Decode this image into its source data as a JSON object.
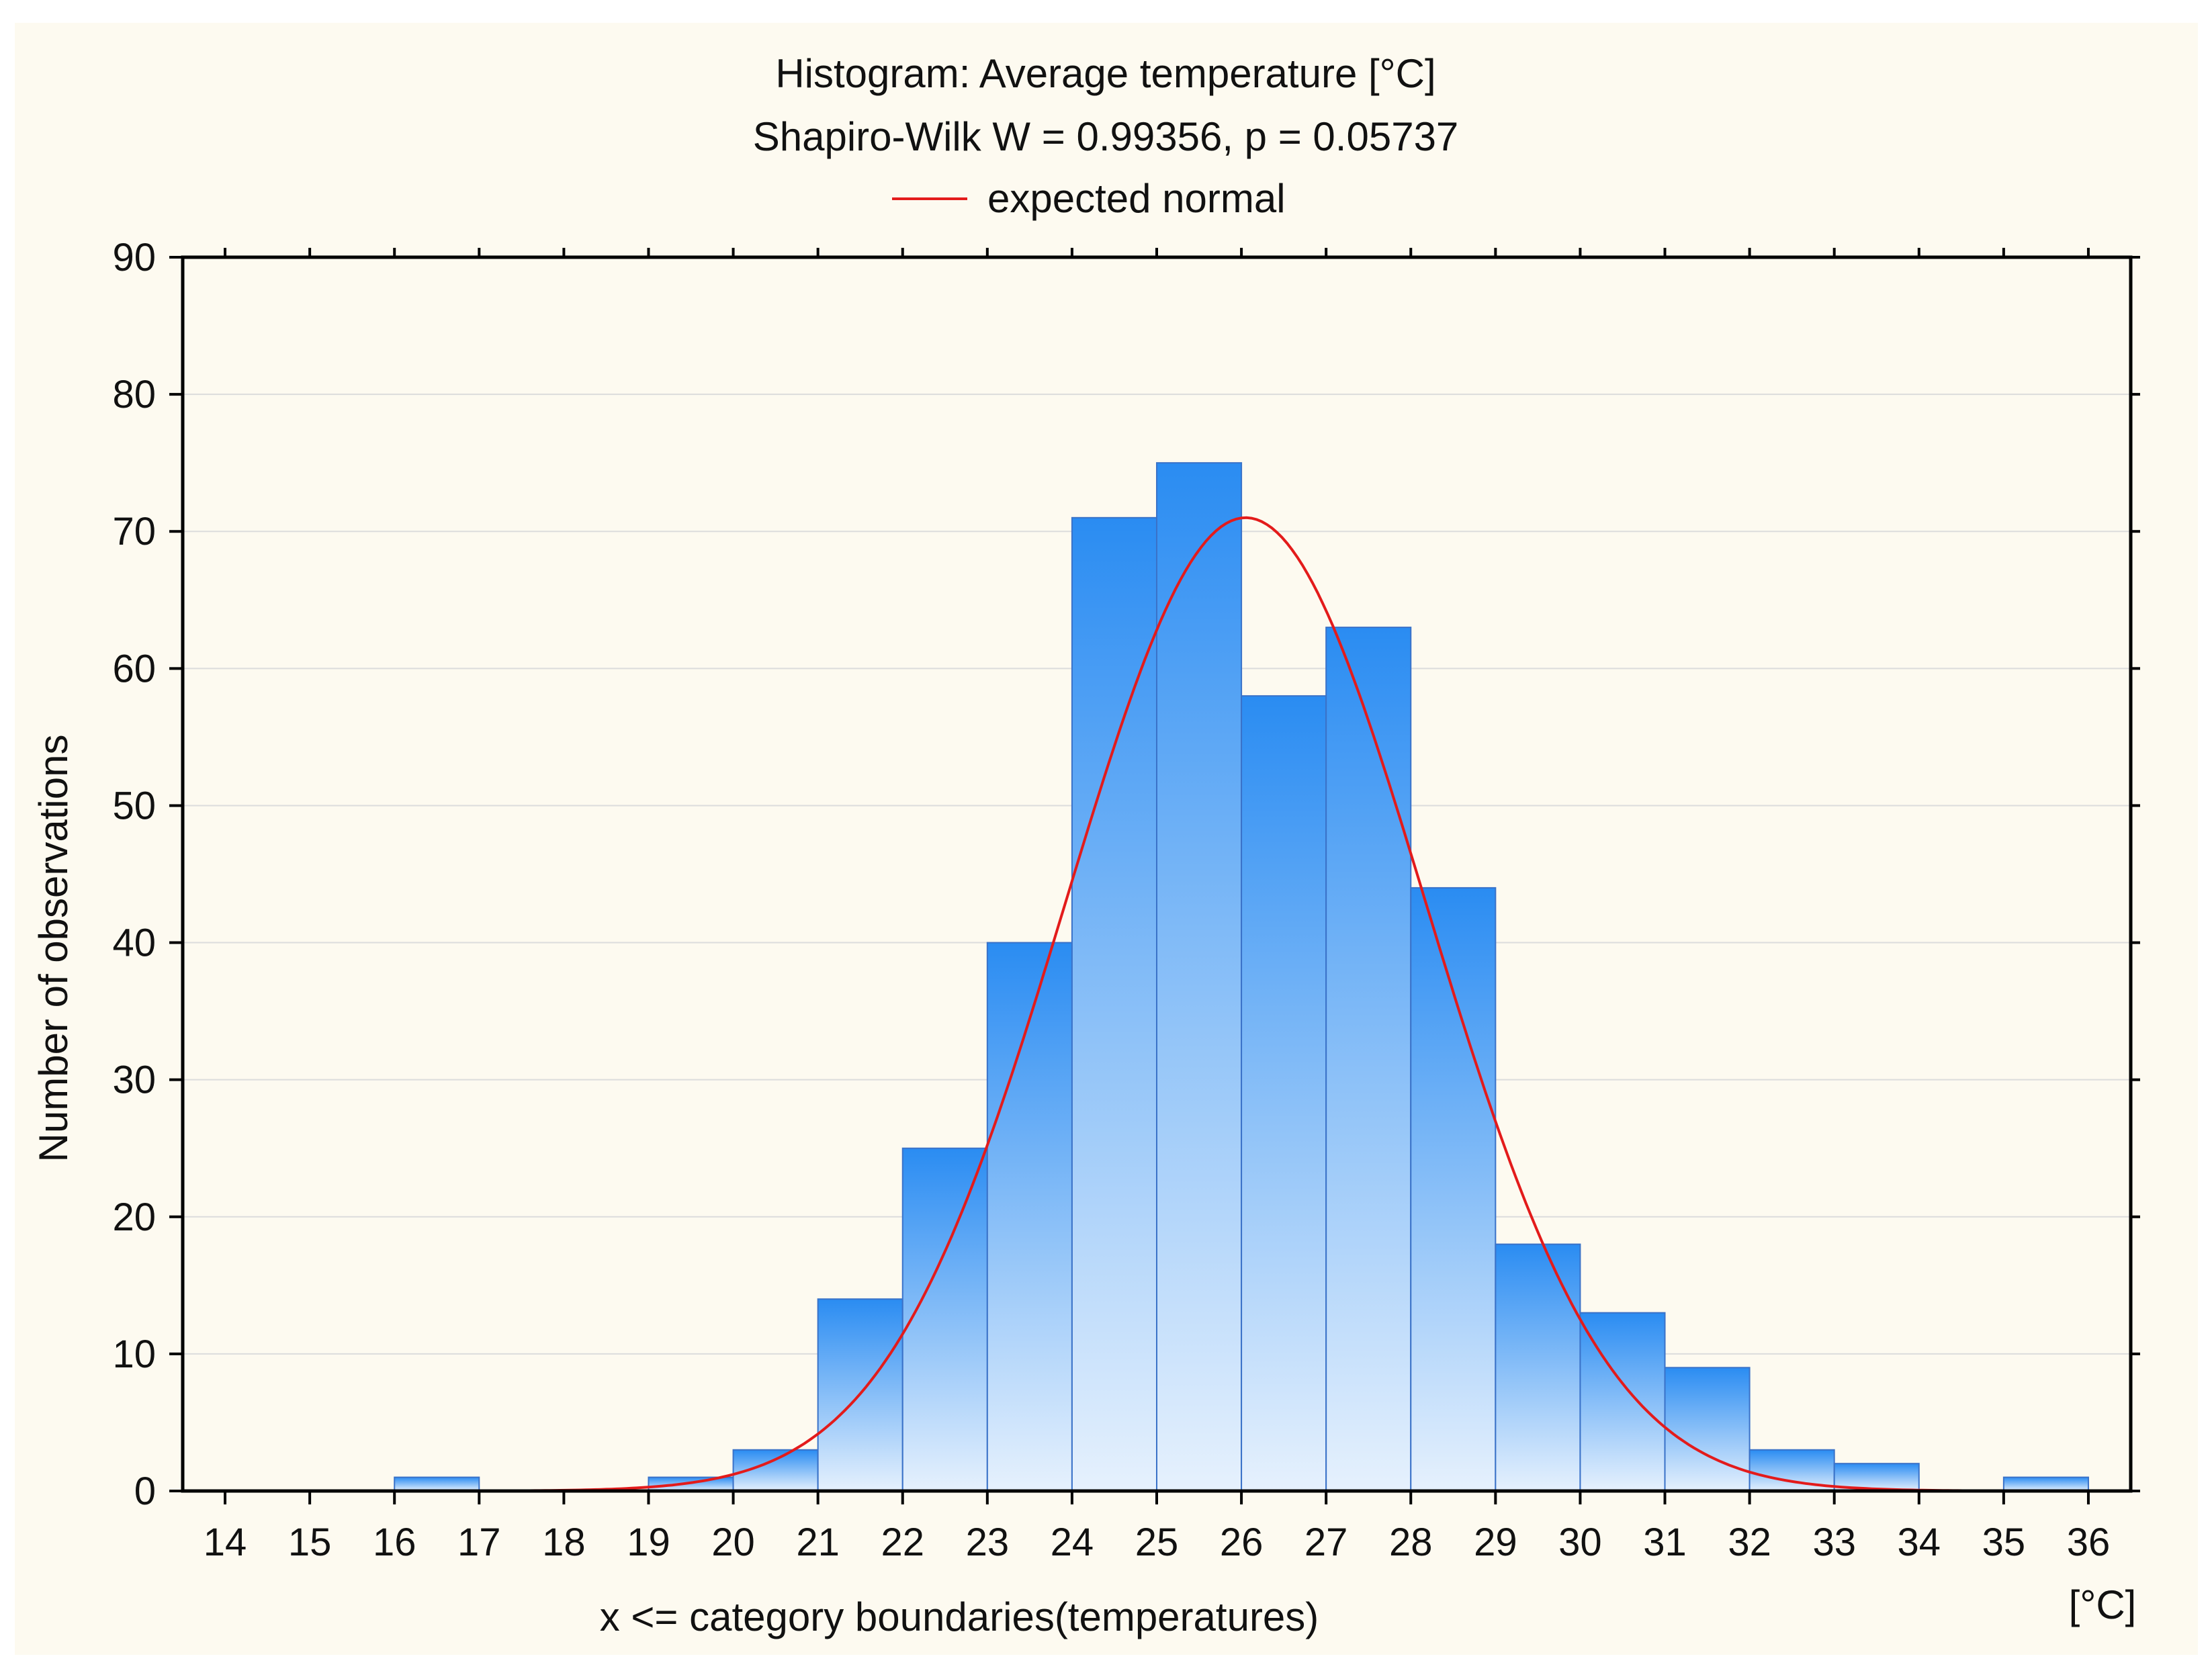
{
  "chart_data": {
    "type": "bar",
    "title": "Histogram: Average temperature [°C]",
    "subtitle": "Shapiro-Wilk W = 0.99356, p = 0.05737",
    "legend": [
      {
        "label": "expected normal",
        "color": "#e31b1b"
      }
    ],
    "legend_position": "top-center",
    "xlabel": "x <= category boundaries(temperatures)",
    "xunit": "[°C]",
    "ylabel": "Number of observations",
    "xlim": [
      13.5,
      36.5
    ],
    "ylim": [
      0,
      90
    ],
    "xticks": [
      14,
      15,
      16,
      17,
      18,
      19,
      20,
      21,
      22,
      23,
      24,
      25,
      26,
      27,
      28,
      29,
      30,
      31,
      32,
      33,
      34,
      35,
      36
    ],
    "yticks": [
      0,
      10,
      20,
      30,
      40,
      50,
      60,
      70,
      80,
      90
    ],
    "grid": "horizontal",
    "bins": [
      {
        "from": 14,
        "to": 15,
        "count": 0
      },
      {
        "from": 15,
        "to": 16,
        "count": 0
      },
      {
        "from": 16,
        "to": 17,
        "count": 1
      },
      {
        "from": 17,
        "to": 18,
        "count": 0
      },
      {
        "from": 18,
        "to": 19,
        "count": 0
      },
      {
        "from": 19,
        "to": 20,
        "count": 1
      },
      {
        "from": 20,
        "to": 21,
        "count": 3
      },
      {
        "from": 21,
        "to": 22,
        "count": 14
      },
      {
        "from": 22,
        "to": 23,
        "count": 25
      },
      {
        "from": 23,
        "to": 24,
        "count": 40
      },
      {
        "from": 24,
        "to": 25,
        "count": 71
      },
      {
        "from": 25,
        "to": 26,
        "count": 75
      },
      {
        "from": 26,
        "to": 27,
        "count": 58
      },
      {
        "from": 27,
        "to": 28,
        "count": 63
      },
      {
        "from": 28,
        "to": 29,
        "count": 44
      },
      {
        "from": 29,
        "to": 30,
        "count": 18
      },
      {
        "from": 30,
        "to": 31,
        "count": 13
      },
      {
        "from": 31,
        "to": 32,
        "count": 9
      },
      {
        "from": 32,
        "to": 33,
        "count": 3
      },
      {
        "from": 33,
        "to": 34,
        "count": 2
      },
      {
        "from": 34,
        "to": 35,
        "count": 0
      },
      {
        "from": 35,
        "to": 36,
        "count": 1
      }
    ],
    "normal_curve": {
      "mean": 26.05,
      "sd": 2.12,
      "peak": 71,
      "x_range": [
        17,
        35
      ]
    },
    "colors": {
      "bar_top": "#2a8cf2",
      "bar_bottom": "#e6f1fd",
      "bar_edge": "#3a72c8",
      "curve": "#e31b1b",
      "grid": "#dcdcdc",
      "axis": "#000000"
    }
  }
}
